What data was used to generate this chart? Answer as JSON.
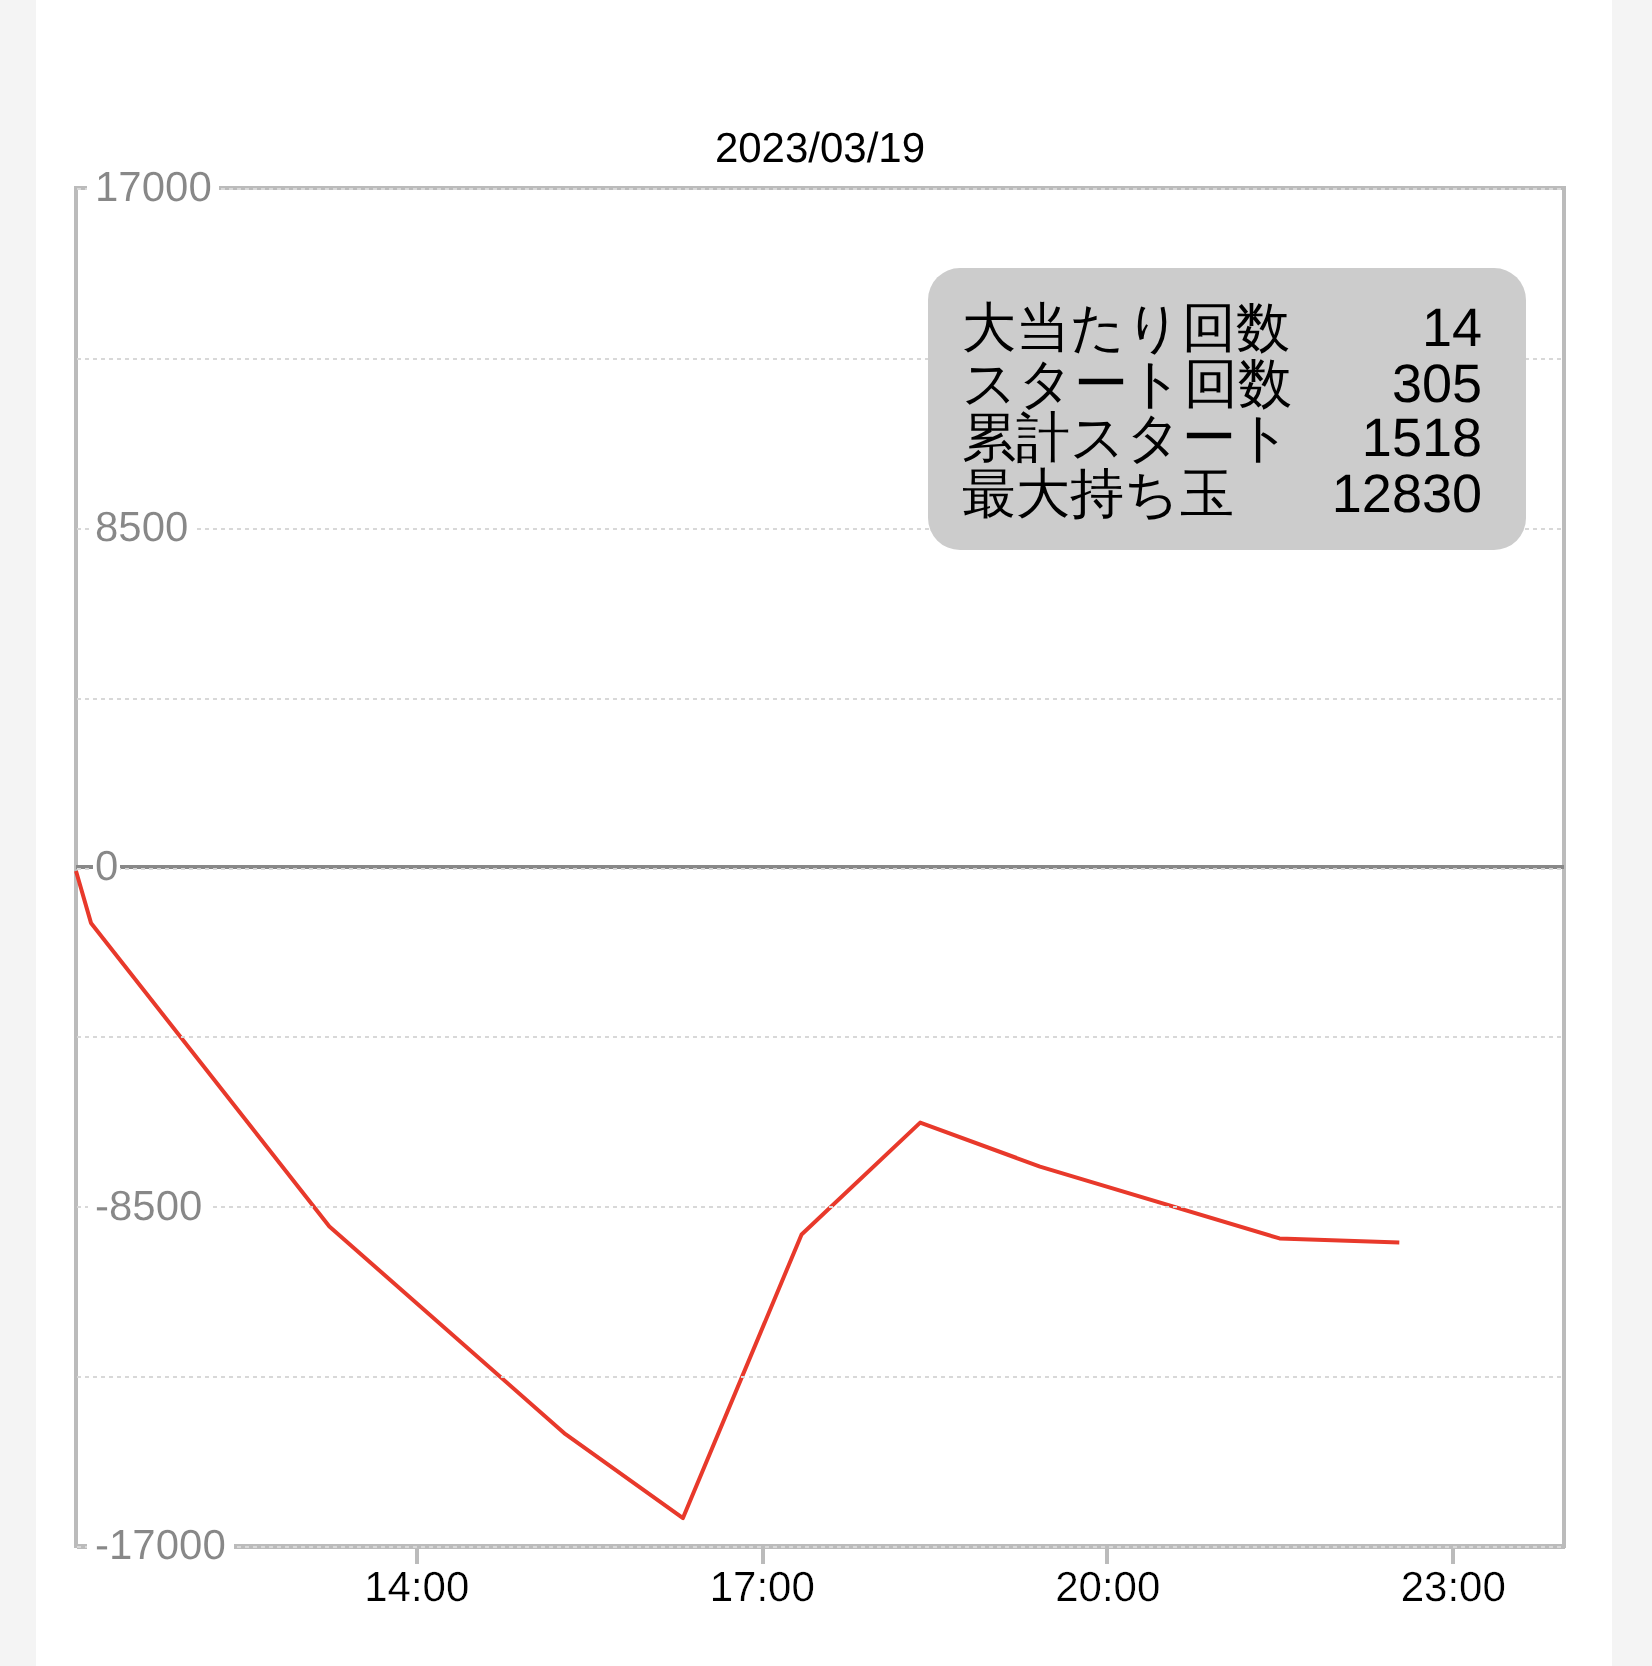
{
  "chart_data": {
    "type": "line",
    "title": "2023/03/19",
    "x": [
      11.05,
      11.18,
      13.25,
      15.3,
      16.32,
      17.35,
      18.38,
      19.42,
      21.5,
      22.54
    ],
    "series": [
      {
        "color": "#e8392b",
        "values": [
          -100,
          -1400,
          -9000,
          -14200,
          -16300,
          -9200,
          -6400,
          -7500,
          -9300,
          -9400
        ]
      }
    ],
    "xlim": [
      11.05,
      23.97
    ],
    "xticks": [
      {
        "value": 14,
        "label": "14:00"
      },
      {
        "value": 17,
        "label": "17:00"
      },
      {
        "value": 20,
        "label": "20:00"
      },
      {
        "value": 23,
        "label": "23:00"
      }
    ],
    "ylim": [
      -17000,
      17000
    ],
    "yticks": [
      -17000,
      {
        "value": -12750,
        "label": null
      },
      -8500,
      {
        "value": -4250,
        "label": null
      },
      0,
      {
        "value": 4250,
        "label": null
      },
      8500,
      {
        "value": 12750,
        "label": null
      },
      17000
    ],
    "grid": "y",
    "ref_lines": [
      {
        "axis": "y",
        "value": 0,
        "color": "#888888"
      }
    ],
    "annotations": [
      "大当たり回数 14",
      "スタート回数 305",
      "累計スタート 1518",
      "最大持ち玉 12830"
    ]
  }
}
